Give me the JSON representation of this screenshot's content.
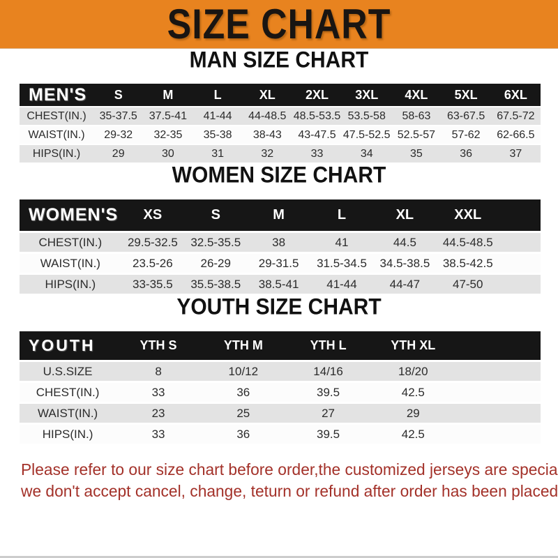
{
  "banner": {
    "title": "SIZE CHART",
    "bg_color": "#E8831F",
    "text_color": "#191512"
  },
  "colors": {
    "header_bar": "#161616",
    "stripe_row": "#E3E3E3",
    "white_row": "#FCFCFC",
    "footer_text": "#A33129"
  },
  "chart_data": [
    {
      "type": "table",
      "title": "MAN SIZE CHART",
      "header_label": "MEN'S",
      "columns": [
        "S",
        "M",
        "L",
        "XL",
        "2XL",
        "3XL",
        "4XL",
        "5XL",
        "6XL"
      ],
      "rows": [
        {
          "label": "CHEST(IN.)",
          "values": [
            "35-37.5",
            "37.5-41",
            "41-44",
            "44-48.5",
            "48.5-53.5",
            "53.5-58",
            "58-63",
            "63-67.5",
            "67.5-72"
          ]
        },
        {
          "label": "WAIST(IN.)",
          "values": [
            "29-32",
            "32-35",
            "35-38",
            "38-43",
            "43-47.5",
            "47.5-52.5",
            "52.5-57",
            "57-62",
            "62-66.5"
          ]
        },
        {
          "label": "HIPS(IN.)",
          "values": [
            "29",
            "30",
            "31",
            "32",
            "33",
            "34",
            "35",
            "36",
            "37"
          ]
        }
      ],
      "trailing_blank": false
    },
    {
      "type": "table",
      "title": "WOMEN SIZE CHART",
      "header_label": "WOMEN'S",
      "columns": [
        "XS",
        "S",
        "M",
        "L",
        "XL",
        "XXL"
      ],
      "rows": [
        {
          "label": "CHEST(IN.)",
          "values": [
            "29.5-32.5",
            "32.5-35.5",
            "38",
            "41",
            "44.5",
            "44.5-48.5"
          ]
        },
        {
          "label": "WAIST(IN.)",
          "values": [
            "23.5-26",
            "26-29",
            "29-31.5",
            "31.5-34.5",
            "34.5-38.5",
            "38.5-42.5"
          ]
        },
        {
          "label": "HIPS(IN.)",
          "values": [
            "33-35.5",
            "35.5-38.5",
            "38.5-41",
            "41-44",
            "44-47",
            "47-50"
          ]
        }
      ],
      "trailing_blank": true
    },
    {
      "type": "table",
      "title": "YOUTH SIZE CHART",
      "header_label": "YOUTH",
      "columns": [
        "YTH S",
        "YTH M",
        "YTH L",
        "YTH XL"
      ],
      "rows": [
        {
          "label": "U.S.SIZE",
          "values": [
            "8",
            "10/12",
            "14/16",
            "18/20"
          ]
        },
        {
          "label": "CHEST(IN.)",
          "values": [
            "33",
            "36",
            "39.5",
            "42.5"
          ]
        },
        {
          "label": "WAIST(IN.)",
          "values": [
            "23",
            "25",
            "27",
            "29"
          ]
        },
        {
          "label": "HIPS(IN.)",
          "values": [
            "33",
            "36",
            "39.5",
            "42.5"
          ]
        }
      ],
      "trailing_blank": true
    }
  ],
  "footer": {
    "line1": "Please refer to our size chart before order,the customized jerseys are special products,",
    "line2": "we don't accept cancel, change, teturn or refund after order has been placed!"
  }
}
